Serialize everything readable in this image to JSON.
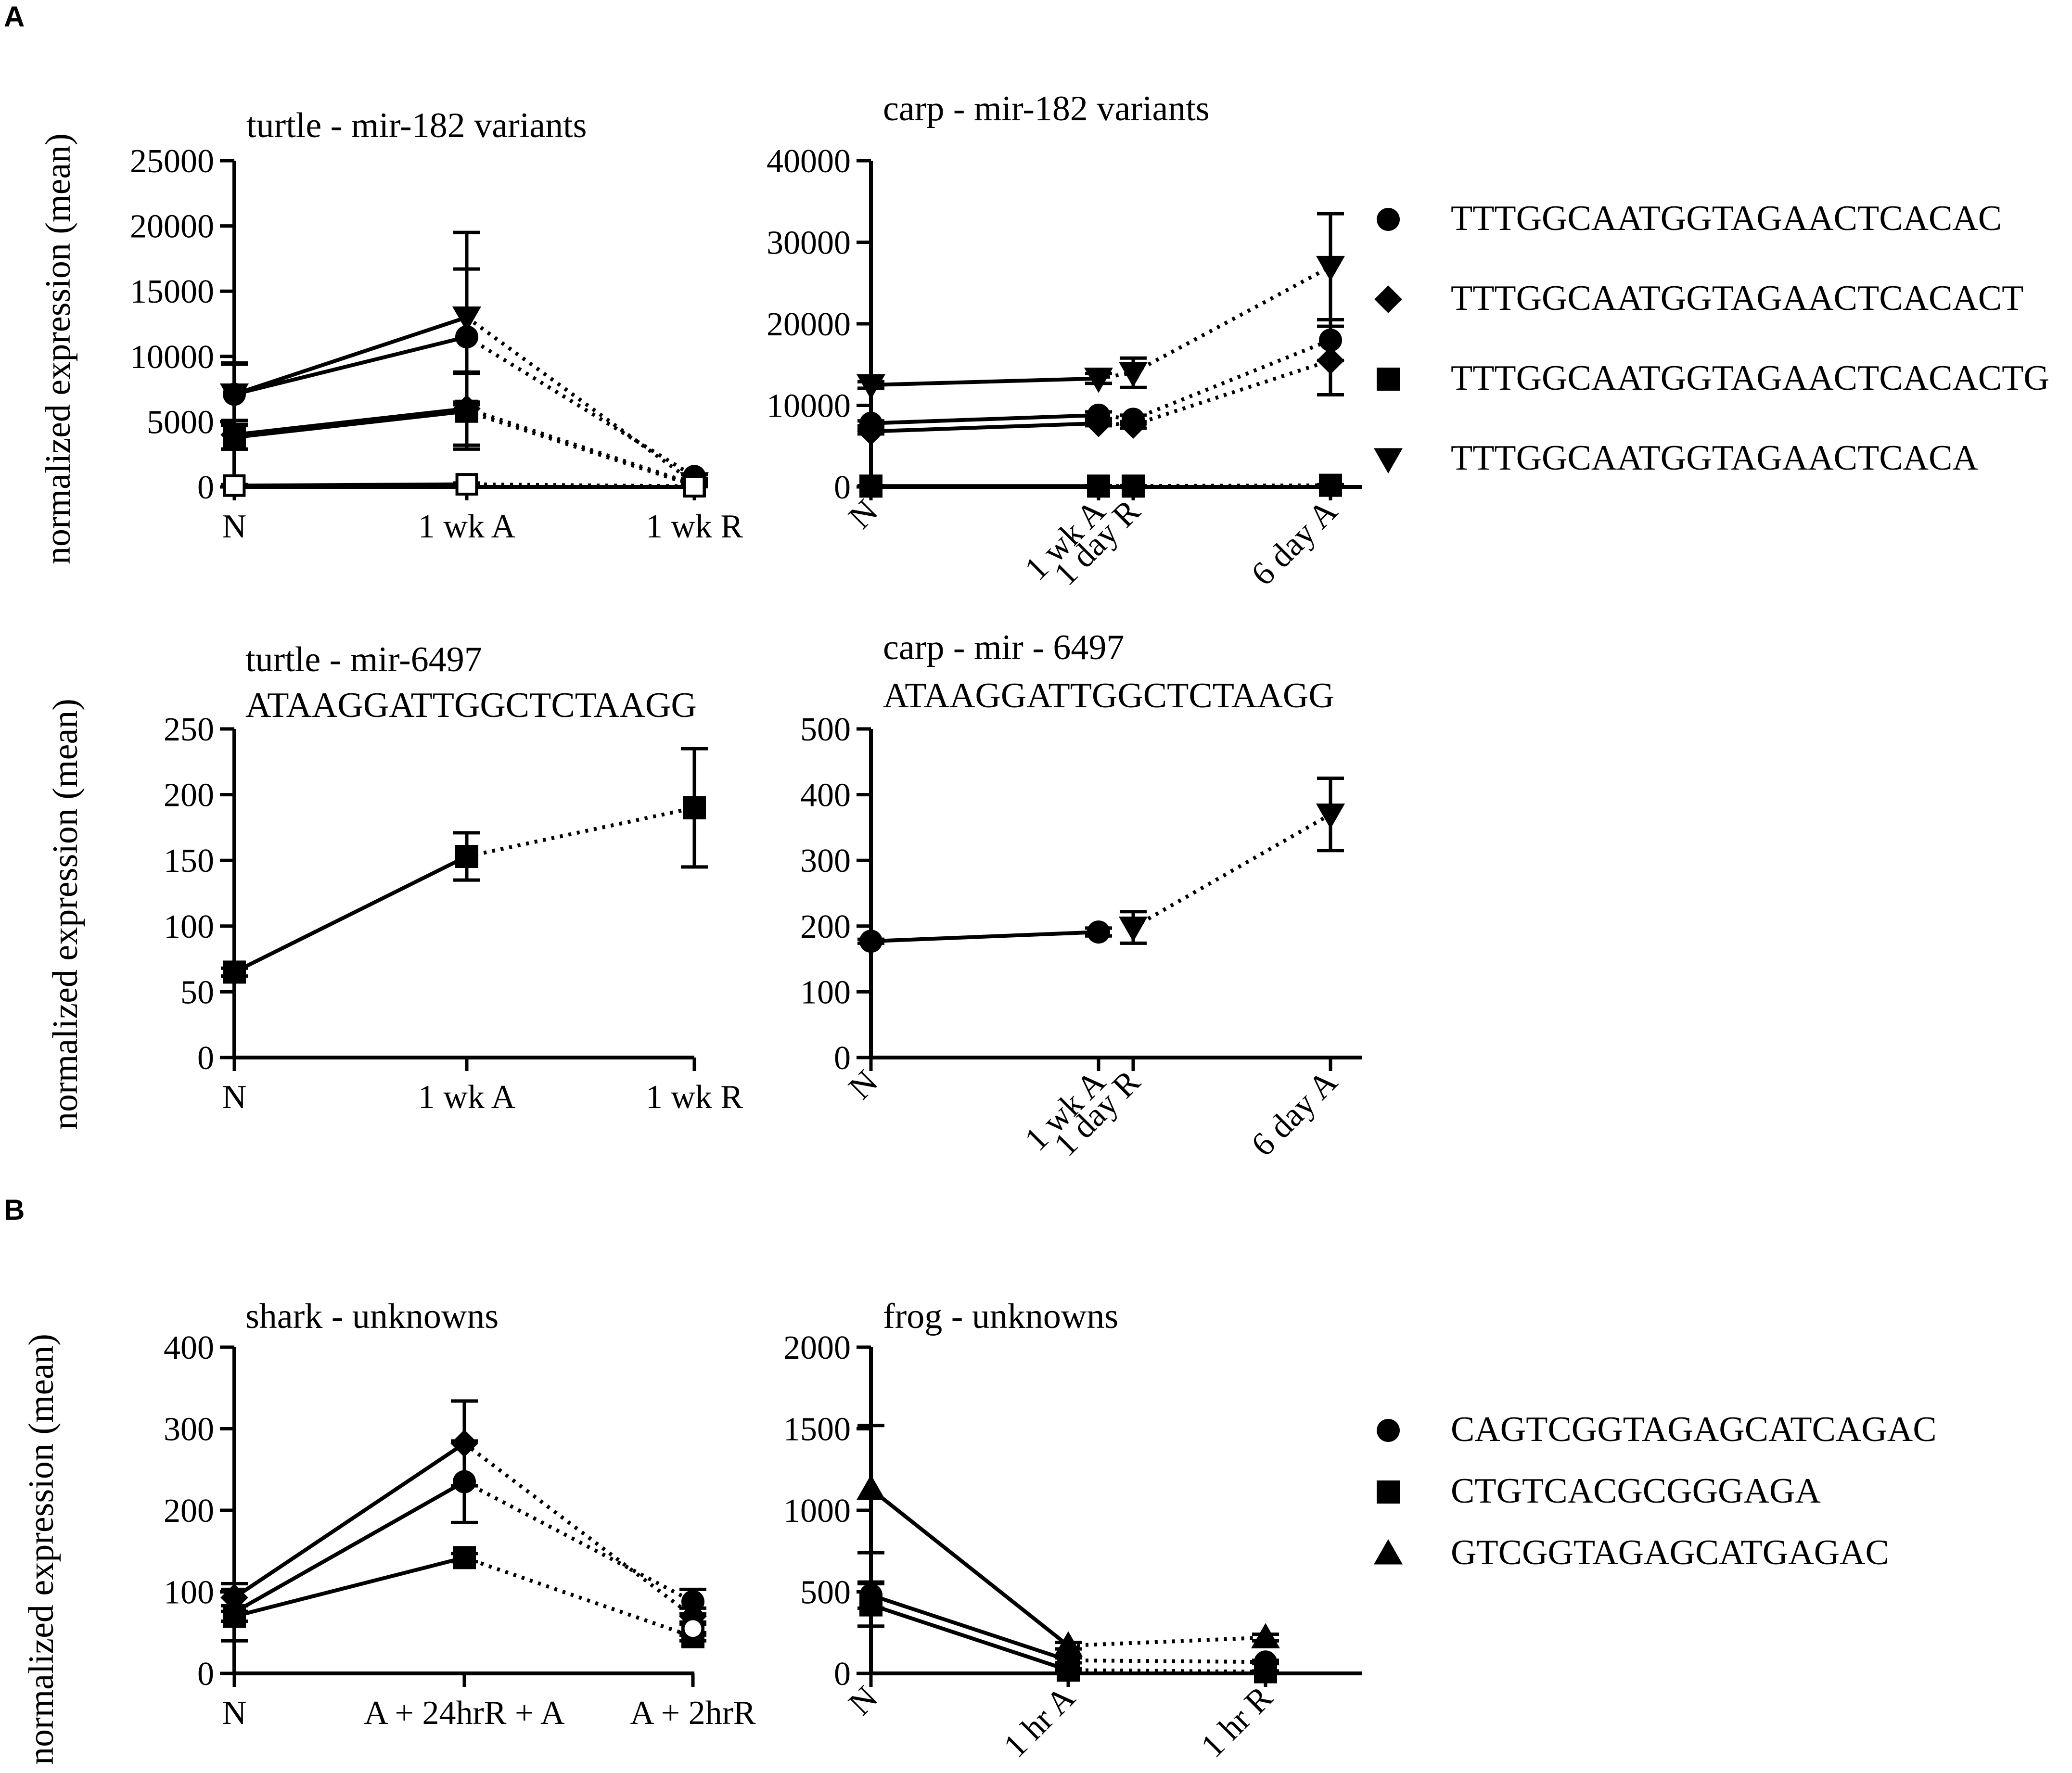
{
  "panel_labels": [
    "A",
    "B"
  ],
  "ylabel": "normalized expression (mean)",
  "legend_a": [
    {
      "marker": "circle",
      "label": "TTTGGCAATGGTAGAACTCACAC"
    },
    {
      "marker": "diamond",
      "label": "TTTGGCAATGGTAGAACTCACACT"
    },
    {
      "marker": "square",
      "label": "TTTGGCAATGGTAGAACTCACACTG"
    },
    {
      "marker": "triangle-down",
      "label": "TTTGGCAATGGTAGAACTCACA"
    }
  ],
  "legend_b": [
    {
      "marker": "circle",
      "label": "CAGTCGGTAGAGCATCAGAC"
    },
    {
      "marker": "square",
      "label": "CTGTCACGCGGGAGA"
    },
    {
      "marker": "triangle-up",
      "label": "GTCGGTAGAGCATGAGAC"
    }
  ],
  "chart_data": [
    {
      "id": "turtle-mir182",
      "type": "line",
      "title": "turtle -  mir-182 variants",
      "subtitle": "",
      "xlabel": "",
      "ylabel": "normalized expression (mean)",
      "ylim": [
        0,
        25000
      ],
      "yticks": [
        0,
        5000,
        10000,
        15000,
        20000,
        25000
      ],
      "x": [
        0,
        1,
        2
      ],
      "xlim": [
        0,
        2
      ],
      "xtick_labels": [
        "N",
        "1 wk A",
        "1 wk R"
      ],
      "xtick_rotation": 0,
      "solid_segments": 1,
      "series": [
        {
          "marker": "circle",
          "values": [
            7100,
            11500,
            800
          ],
          "err": [
            2400,
            5200,
            150
          ]
        },
        {
          "marker": "triangle-down",
          "values": [
            7100,
            13000,
            300
          ],
          "err": [
            2300,
            6500,
            100
          ]
        },
        {
          "marker": "diamond",
          "values": [
            4000,
            6000,
            200
          ],
          "err": [
            1100,
            2800,
            100
          ]
        },
        {
          "marker": "square",
          "values": [
            3800,
            5800,
            100
          ],
          "err": [
            900,
            2900,
            80
          ]
        },
        {
          "marker": "open-square",
          "values": [
            100,
            200,
            50
          ],
          "err": [
            80,
            100,
            30
          ]
        }
      ]
    },
    {
      "id": "carp-mir182",
      "type": "line",
      "title": "carp - mir-182 variants",
      "subtitle": "",
      "xlabel": "",
      "ylabel": "",
      "ylim": [
        0,
        40000
      ],
      "yticks": [
        0,
        10000,
        20000,
        30000,
        40000
      ],
      "x": [
        0,
        1,
        1.15,
        2
      ],
      "xlim": [
        0,
        2
      ],
      "xtick_labels": [
        "N",
        "1 wk A",
        "1 day R",
        "6 day A"
      ],
      "xtick_rotation": -45,
      "solid_segments": 1,
      "series": [
        {
          "marker": "triangle-down",
          "values": [
            12500,
            13300,
            14000,
            27000
          ],
          "err": [
            400,
            600,
            1800,
            6500
          ]
        },
        {
          "marker": "circle",
          "values": [
            7800,
            8800,
            8300,
            18000
          ],
          "err": [
            300,
            400,
            500,
            2500
          ]
        },
        {
          "marker": "diamond",
          "values": [
            6800,
            7800,
            7600,
            15500
          ],
          "err": [
            300,
            300,
            400,
            4200
          ]
        },
        {
          "marker": "square",
          "values": [
            100,
            100,
            100,
            200
          ],
          "err": [
            50,
            50,
            50,
            80
          ]
        }
      ]
    },
    {
      "id": "turtle-mir6497",
      "type": "line",
      "title": "turtle - mir-6497",
      "subtitle": "ATAAGGATTGGCTCTAAGG",
      "xlabel": "",
      "ylabel": "normalized expression (mean)",
      "ylim": [
        0,
        250
      ],
      "yticks": [
        0,
        50,
        100,
        150,
        200,
        250
      ],
      "x": [
        0,
        1,
        2
      ],
      "xlim": [
        0,
        2
      ],
      "xtick_labels": [
        "N",
        "1 wk A",
        "1 wk R"
      ],
      "xtick_rotation": 0,
      "solid_segments": 1,
      "series": [
        {
          "marker": "square",
          "values": [
            65,
            153,
            190
          ],
          "err": [
            3,
            18,
            45
          ]
        }
      ]
    },
    {
      "id": "carp-mir6497",
      "type": "line",
      "title": "carp - mir - 6497",
      "subtitle": "ATAAGGATTGGCTCTAAGG",
      "xlabel": "",
      "ylabel": "",
      "ylim": [
        0,
        500
      ],
      "yticks": [
        0,
        100,
        200,
        300,
        400,
        500
      ],
      "x": [
        0,
        1,
        1.15,
        2
      ],
      "xlim": [
        0,
        2
      ],
      "xtick_labels": [
        "N",
        "1 wk A",
        "1 day R",
        "6 day A"
      ],
      "xtick_rotation": -45,
      "solid_segments": 1,
      "series": [
        {
          "marker": "circle",
          "values": [
            177,
            191,
            null,
            null
          ],
          "err": [
            3,
            6,
            0,
            0
          ]
        },
        {
          "marker": "triangle-down",
          "values": [
            null,
            null,
            198,
            370
          ],
          "err": [
            0,
            0,
            24,
            55
          ]
        }
      ]
    },
    {
      "id": "shark-unknowns",
      "type": "line",
      "title": "shark - unknowns",
      "subtitle": "",
      "xlabel": "",
      "ylabel": "normalized expression (mean)",
      "ylim": [
        0,
        400
      ],
      "yticks": [
        0,
        100,
        200,
        300,
        400
      ],
      "x": [
        0,
        1,
        2
      ],
      "xlim": [
        0,
        2
      ],
      "xtick_labels": [
        "N",
        "A + 24hrR + A",
        "A + 2hrR"
      ],
      "xtick_rotation": 0,
      "solid_segments": 1,
      "series": [
        {
          "marker": "diamond",
          "values": [
            93,
            282,
            70
          ],
          "err": [
            10,
            52,
            10
          ]
        },
        {
          "marker": "circle",
          "values": [
            75,
            235,
            88
          ],
          "err": [
            35,
            50,
            15
          ]
        },
        {
          "marker": "square",
          "values": [
            70,
            142,
            45
          ],
          "err": [
            6,
            5,
            5
          ]
        },
        {
          "marker": "open-circle",
          "values": [
            null,
            null,
            55
          ],
          "err": [
            0,
            0,
            8
          ]
        }
      ]
    },
    {
      "id": "frog-unknowns",
      "type": "line",
      "title": "frog - unknowns",
      "subtitle": "",
      "xlabel": "",
      "ylabel": "",
      "ylim": [
        0,
        2000
      ],
      "yticks": [
        0,
        500,
        1000,
        1500,
        2000
      ],
      "x": [
        0,
        1,
        2
      ],
      "xlim": [
        0,
        2
      ],
      "xtick_labels": [
        "N",
        "1 hr A",
        "1 hr R"
      ],
      "xtick_rotation": 0,
      "solid_segments": 1,
      "series": [
        {
          "marker": "triangle-up",
          "values": [
            1130,
            170,
            220
          ],
          "err": [
            390,
            20,
            20
          ]
        },
        {
          "marker": "circle",
          "values": [
            480,
            80,
            70
          ],
          "err": [
            80,
            15,
            10
          ]
        },
        {
          "marker": "square",
          "values": [
            420,
            20,
            10
          ],
          "err": [
            130,
            10,
            5
          ]
        }
      ]
    }
  ]
}
